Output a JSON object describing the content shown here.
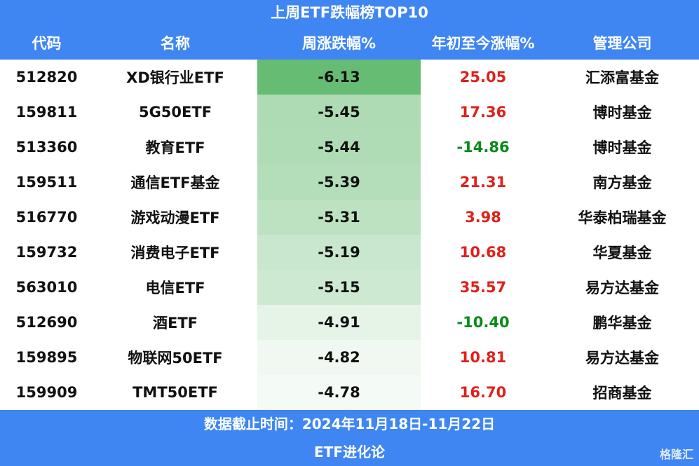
{
  "header": {
    "title": "上周ETF跌幅榜TOP10"
  },
  "table": {
    "columns": [
      "代码",
      "名称",
      "周涨跌幅%",
      "年初至今涨幅%",
      "管理公司"
    ],
    "rows": [
      [
        "512820",
        "XD银行业ETF",
        "-6.13",
        "25.05",
        "汇添富基金"
      ],
      [
        "159811",
        "5G50ETF",
        "-5.45",
        "17.36",
        "博时基金"
      ],
      [
        "513360",
        "教育ETF",
        "-5.44",
        "-14.86",
        "博时基金"
      ],
      [
        "159511",
        "通信ETF基金",
        "-5.39",
        "21.31",
        "南方基金"
      ],
      [
        "516770",
        "游戏动漫ETF",
        "-5.31",
        "3.98",
        "华泰柏瑞基金"
      ],
      [
        "159732",
        "消费电子ETF",
        "-5.19",
        "10.68",
        "华夏基金"
      ],
      [
        "563010",
        "电信ETF",
        "-5.15",
        "35.57",
        "易方达基金"
      ],
      [
        "512690",
        "酒ETF",
        "-4.91",
        "-10.40",
        "鹏华基金"
      ],
      [
        "159895",
        "物联网50ETF",
        "-4.82",
        "10.81",
        "易方达基金"
      ],
      [
        "159909",
        "TMT50ETF",
        "-4.78",
        "16.70",
        "招商基金"
      ]
    ]
  },
  "footer": {
    "date": "数据截止时间：2024年11月18日-11月22日",
    "source": "ETF进化论",
    "watermark": "格隆汇"
  }
}
